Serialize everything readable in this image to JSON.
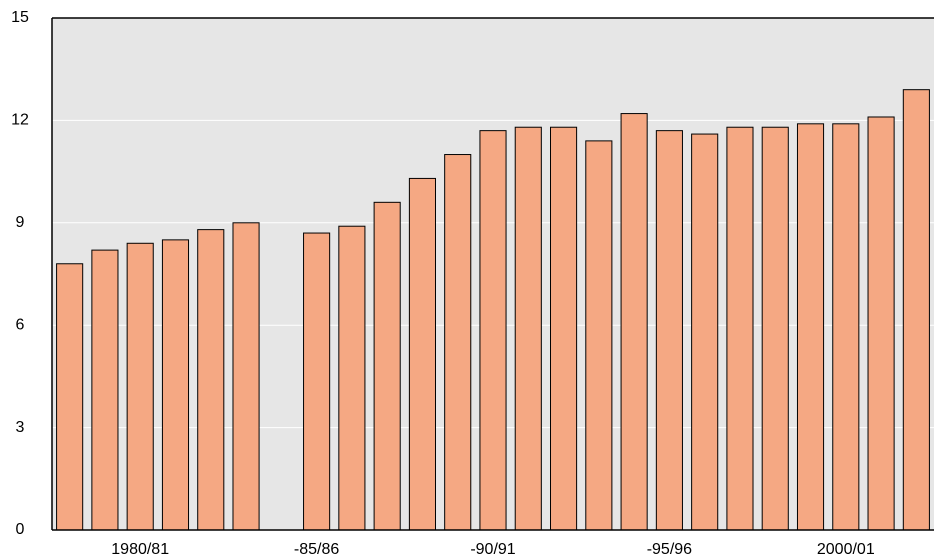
{
  "chart_data": {
    "type": "bar",
    "categories": [
      null,
      null,
      "1980/81",
      null,
      null,
      null,
      null,
      "-85/86",
      null,
      null,
      null,
      null,
      "-90/91",
      null,
      null,
      null,
      null,
      "-95/96",
      null,
      null,
      null,
      null,
      "2000/01",
      null,
      null
    ],
    "values": [
      7.8,
      8.2,
      8.4,
      8.5,
      8.8,
      9.0,
      null,
      8.7,
      8.9,
      9.6,
      10.3,
      11.0,
      11.7,
      11.8,
      11.8,
      11.4,
      12.2,
      11.7,
      11.6,
      11.8,
      11.8,
      11.9,
      11.9,
      12.1,
      12.9
    ],
    "color": "#f5a883",
    "ylim": [
      0,
      15
    ],
    "yticks": [
      0,
      3,
      6,
      9,
      12,
      15
    ],
    "grid": true
  }
}
